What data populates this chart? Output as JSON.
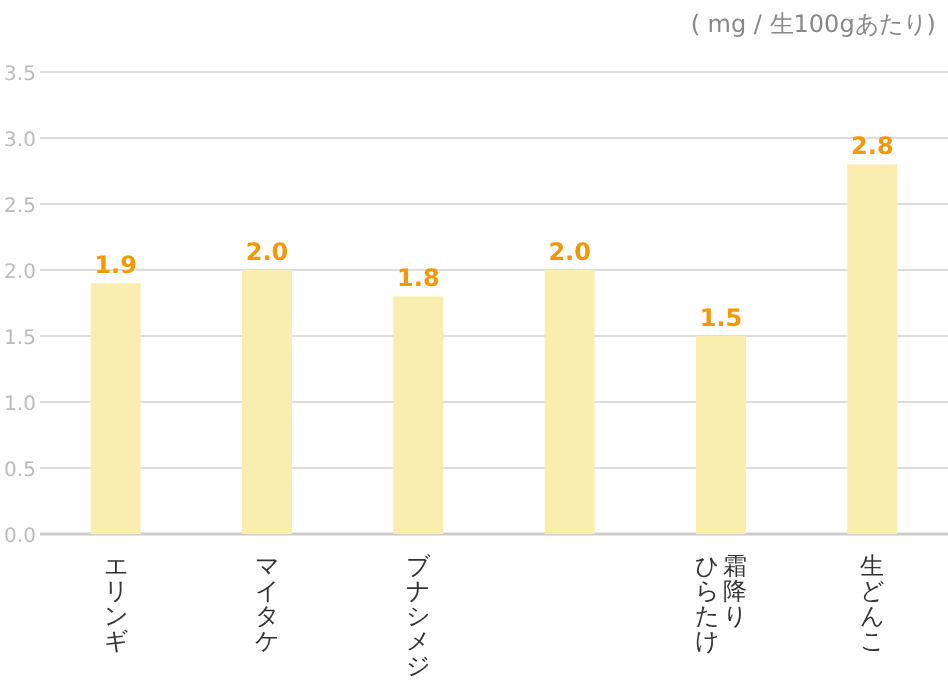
{
  "chart_data": {
    "type": "bar",
    "annotations": [
      "( mg / 生100gあたり)"
    ],
    "categories": [
      "エリンギ",
      "マイタケ",
      "ブナシメジ",
      null,
      "霜降りひらたけ",
      "生どんこ"
    ],
    "values": [
      1.9,
      2.0,
      1.8,
      2.0,
      1.5,
      2.8
    ],
    "color": "#f9edb0",
    "ylim": [
      0,
      3.5
    ],
    "yticks": [
      {
        "value": 0,
        "label": "0.0"
      },
      {
        "value": 0.5,
        "label": "0.5"
      },
      {
        "value": 1,
        "label": "1.0"
      },
      {
        "value": 1.5,
        "label": "1.5"
      },
      {
        "value": 2,
        "label": "2.0"
      },
      {
        "value": 2.5,
        "label": "2.5"
      },
      {
        "value": 3,
        "label": "3.0"
      },
      {
        "value": 3.5,
        "label": "3.5"
      }
    ],
    "grid": "y",
    "value_labels": [
      "1.9",
      "2.0",
      "1.8",
      "2.0",
      "1.5",
      "2.8"
    ]
  }
}
